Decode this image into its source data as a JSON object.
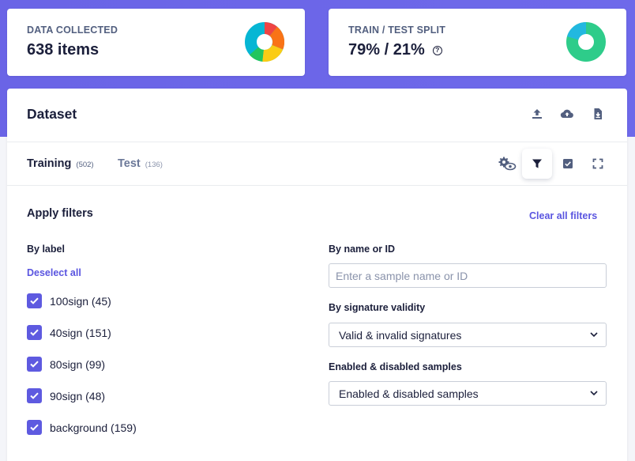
{
  "stats": {
    "data_collected": {
      "label": "DATA COLLECTED",
      "value": "638 items"
    },
    "train_test_split": {
      "label": "TRAIN / TEST SPLIT",
      "value": "79% / 21%"
    }
  },
  "dataset": {
    "title": "Dataset",
    "header_icons": [
      "upload-icon",
      "cloud-upload-icon",
      "download-file-icon"
    ],
    "tabs": [
      {
        "label": "Training",
        "count": "(502)",
        "active": true
      },
      {
        "label": "Test",
        "count": "(136)",
        "active": false
      }
    ],
    "toolbar_icons": [
      "settings-eye-icon",
      "filter-icon",
      "select-checkbox-icon",
      "fullscreen-icon"
    ]
  },
  "filters": {
    "title": "Apply filters",
    "clear_all": "Clear all filters",
    "by_label": {
      "heading": "By label",
      "deselect_all": "Deselect all",
      "items": [
        {
          "label": "100sign (45)",
          "checked": true
        },
        {
          "label": "40sign (151)",
          "checked": true
        },
        {
          "label": "80sign (99)",
          "checked": true
        },
        {
          "label": "90sign (48)",
          "checked": true
        },
        {
          "label": "background (159)",
          "checked": true
        }
      ]
    },
    "by_name": {
      "heading": "By name or ID",
      "value": "",
      "placeholder": "Enter a sample name or ID"
    },
    "by_signature": {
      "heading": "By signature validity",
      "selected": "Valid & invalid signatures"
    },
    "enabled": {
      "heading": "Enabled & disabled samples",
      "selected": "Enabled & disabled samples"
    }
  },
  "colors": {
    "accent": "#5e5ae0",
    "header_bg": "#6c67e8",
    "donut_label_colors": [
      "#ef4444",
      "#f97316",
      "#facc15",
      "#22c55e",
      "#06b6d4"
    ],
    "donut_split_colors": [
      "#2ecc8a",
      "#22b8e0"
    ]
  }
}
